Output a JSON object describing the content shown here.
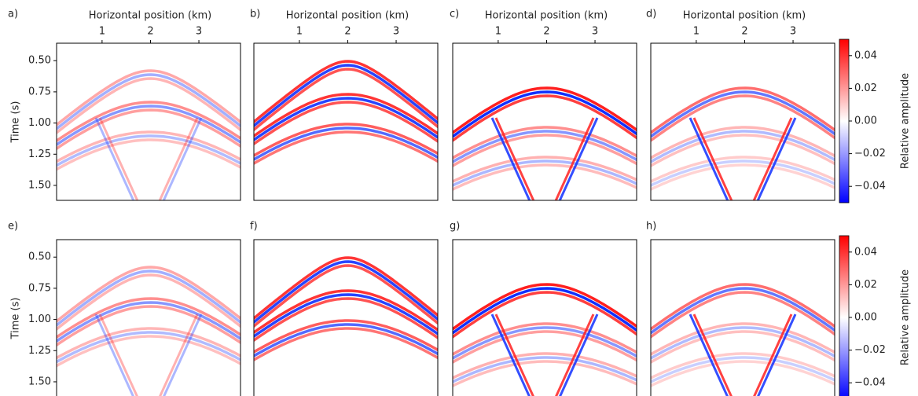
{
  "chart_data": [
    {
      "type": "heatmap",
      "panel_label": "a)",
      "xlabel": "Horizontal position (km)",
      "ylabel": "Time (s)",
      "xlim": [
        0.06,
        3.86
      ],
      "xticks": [
        1,
        2,
        3
      ],
      "ylim": [
        1.62,
        0.36
      ],
      "yticks": [
        {
          "value": 0.5,
          "label": "0.50"
        },
        {
          "value": 0.75,
          "label": "0.75"
        },
        {
          "value": 1.0,
          "label": "1.00"
        },
        {
          "value": 1.25,
          "label": "1.25"
        },
        {
          "value": 1.5,
          "label": "1.50"
        }
      ]
    },
    {
      "type": "heatmap",
      "panel_label": "b)",
      "xlabel": "Horizontal position (km)",
      "xlim": [
        0.06,
        3.86
      ],
      "xticks": [
        1,
        2,
        3
      ],
      "ylim": [
        1.62,
        0.36
      ]
    },
    {
      "type": "heatmap",
      "panel_label": "c)",
      "xlabel": "Horizontal position (km)",
      "xlim": [
        0.06,
        3.86
      ],
      "xticks": [
        1,
        2,
        3
      ],
      "ylim": [
        1.62,
        0.36
      ]
    },
    {
      "type": "heatmap",
      "panel_label": "d)",
      "xlabel": "Horizontal position (km)",
      "xlim": [
        0.06,
        3.86
      ],
      "xticks": [
        1,
        2,
        3
      ],
      "ylim": [
        1.62,
        0.36
      ],
      "colorbar": {
        "label": "Relative amplitude",
        "lim": [
          -0.05,
          0.05
        ],
        "colors": [
          "#0000ff",
          "#ffffff",
          "#ff0000"
        ],
        "ticks": [
          {
            "value": 0.04,
            "label": "0.04"
          },
          {
            "value": 0.02,
            "label": "0.02"
          },
          {
            "value": 0,
            "label": "0.00"
          },
          {
            "value": -0.02,
            "label": "−0.02"
          },
          {
            "value": -0.04,
            "label": "−0.04"
          }
        ]
      }
    },
    {
      "type": "heatmap",
      "panel_label": "e)",
      "ylabel": "Time (s)",
      "ylim": [
        1.62,
        0.36
      ],
      "yticks": [
        {
          "value": 0.5,
          "label": "0.50"
        },
        {
          "value": 0.75,
          "label": "0.75"
        },
        {
          "value": 1.0,
          "label": "1.00"
        },
        {
          "value": 1.25,
          "label": "1.25"
        },
        {
          "value": 1.5,
          "label": "1.50"
        }
      ]
    },
    {
      "type": "heatmap",
      "panel_label": "f)",
      "ylim": [
        1.62,
        0.36
      ]
    },
    {
      "type": "heatmap",
      "panel_label": "g)",
      "ylim": [
        1.62,
        0.36
      ]
    },
    {
      "type": "heatmap",
      "panel_label": "h)",
      "ylim": [
        1.62,
        0.36
      ],
      "colorbar": {
        "label": "Relative amplitude",
        "lim": [
          -0.05,
          0.05
        ],
        "colors": [
          "#0000ff",
          "#ffffff",
          "#ff0000"
        ],
        "ticks": [
          {
            "value": 0.04,
            "label": "0.04"
          },
          {
            "value": 0.02,
            "label": "0.02"
          },
          {
            "value": 0,
            "label": "0.00"
          },
          {
            "value": -0.02,
            "label": "−0.02"
          },
          {
            "value": -0.04,
            "label": "−0.04"
          }
        ]
      }
    }
  ]
}
